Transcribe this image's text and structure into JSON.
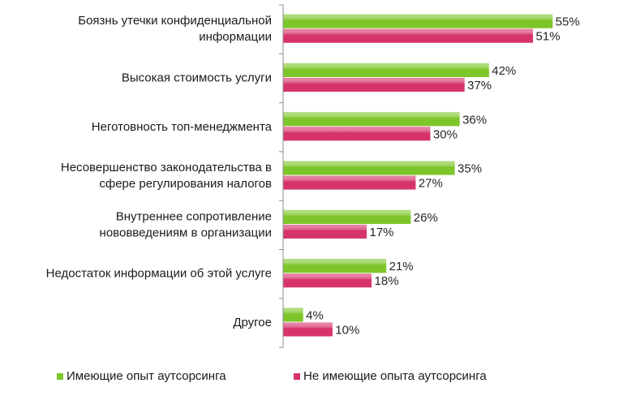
{
  "chart_data": {
    "type": "bar",
    "orientation": "horizontal",
    "categories": [
      [
        "Боязнь утечки конфиденциальной",
        "информации"
      ],
      [
        "Высокая стоимость услуги"
      ],
      [
        "Неготовность топ-менеджмента"
      ],
      [
        "Несовершенство законодательства в",
        "сфере регулирования налогов"
      ],
      [
        "Внутреннее сопротивление",
        "нововведениям в организации"
      ],
      [
        "Недостаток информации об этой услуге"
      ],
      [
        "Другое"
      ]
    ],
    "series": [
      {
        "name": "Имеющие опыт аутсорсинга",
        "values": [
          55,
          42,
          36,
          35,
          26,
          21,
          4
        ],
        "color": "#7dc629"
      },
      {
        "name": "Не имеющие опыта аутсорсинга",
        "values": [
          51,
          37,
          30,
          27,
          17,
          18,
          10
        ],
        "color": "#d6336c"
      }
    ],
    "value_suffix": "%",
    "xlim": [
      0,
      60
    ],
    "grid": false,
    "legend": "bottom"
  }
}
